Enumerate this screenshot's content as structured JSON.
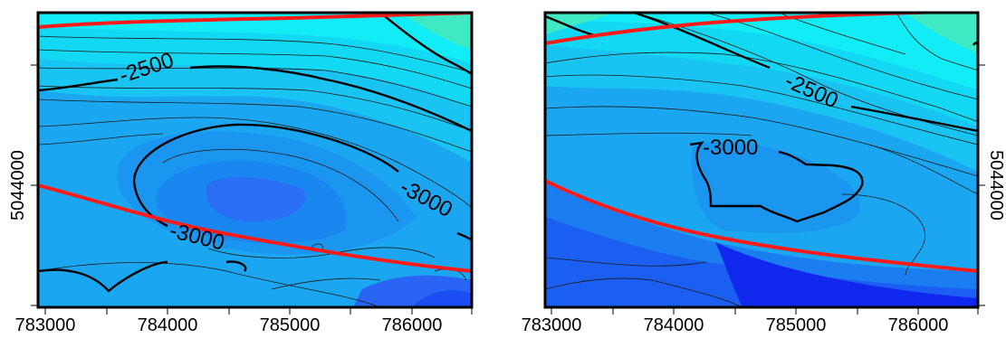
{
  "maps": [
    {
      "name": "left",
      "x_ticks": [
        "783000",
        "784000",
        "785000",
        "786000"
      ],
      "y_ticks": [
        "5044000"
      ],
      "contour_labels": [
        "-2500",
        "-3000",
        "-3000"
      ]
    },
    {
      "name": "right",
      "x_ticks": [
        "783000",
        "784000",
        "785000",
        "786000"
      ],
      "y_ticks": [
        "5044000"
      ],
      "contour_labels": [
        "-2500",
        "-3000"
      ]
    }
  ],
  "colors": {
    "fault_line": "#ff1a1a",
    "major_contour": "#000000",
    "minor_contour": "#1a1a1a",
    "frame": "#000000",
    "teal": "#3ee9c4",
    "cyan": "#12ecf6",
    "light_blue": "#1ac4f2",
    "mid_blue": "#1aa6f0",
    "blue": "#198ef0",
    "deep_blue": "#2a6ef5",
    "navy": "#1028ee"
  }
}
